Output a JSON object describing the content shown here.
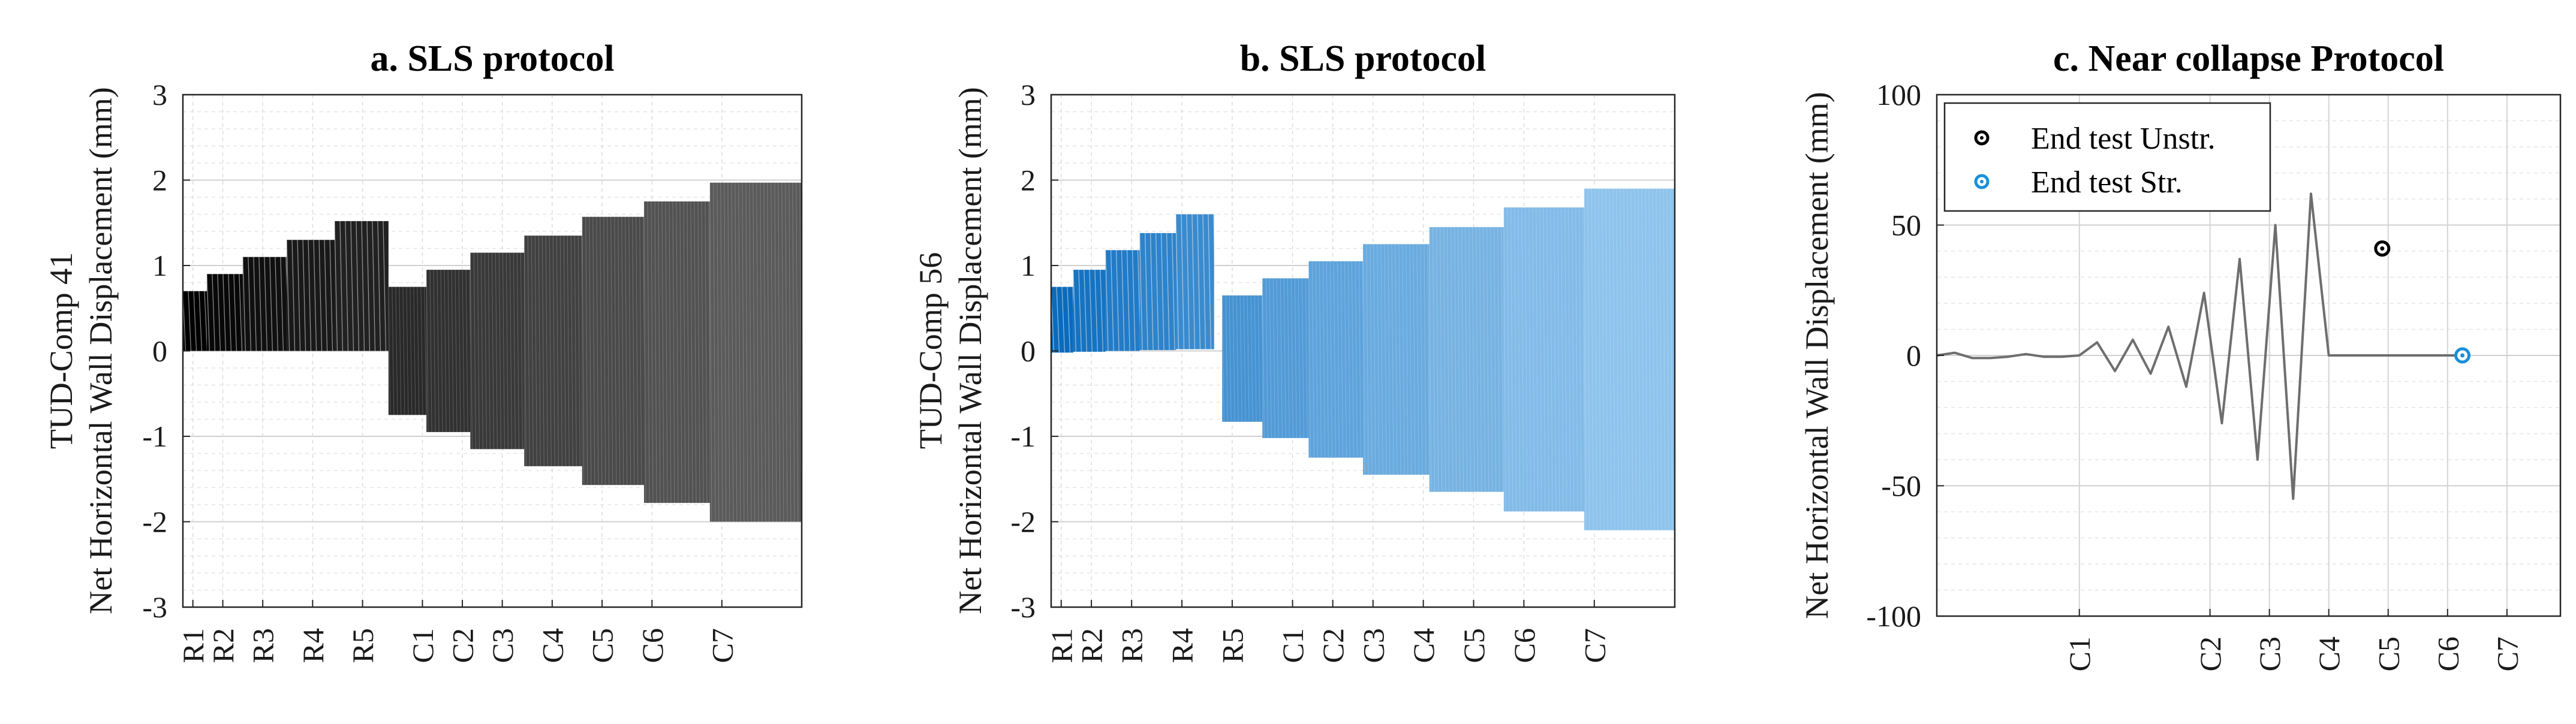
{
  "chart_data": [
    {
      "type": "area",
      "title": "a. SLS protocol",
      "ylabel_lines": [
        "TUD-Comp 41",
        "Net Horizontal Wall Displacement (mm)"
      ],
      "ylim": [
        -3,
        3
      ],
      "yticks": [
        3,
        2,
        1,
        0,
        -1,
        -2,
        -3
      ],
      "xticks": [
        "R1",
        "R2",
        "R3",
        "R4",
        "R5",
        "C1",
        "C2",
        "C3",
        "C4",
        "C5",
        "C6",
        "C7"
      ],
      "xtick_positions": [
        0.5,
        2,
        4,
        6.5,
        9,
        12,
        14,
        16,
        18.5,
        21,
        23.5,
        27
      ],
      "xlim": [
        0,
        31
      ],
      "grid": true,
      "color_start": "#000000",
      "color_end": "#5a5a5a",
      "segments": [
        {
          "label": "R1",
          "x0": 0,
          "x1": 1.2,
          "max": 0.7,
          "min": 0.0
        },
        {
          "label": "R2",
          "x0": 1.2,
          "x1": 3.0,
          "max": 0.9,
          "min": 0.0
        },
        {
          "label": "R3",
          "x0": 3.0,
          "x1": 5.2,
          "max": 1.1,
          "min": 0.0
        },
        {
          "label": "R4",
          "x0": 5.2,
          "x1": 7.6,
          "max": 1.3,
          "min": 0.0
        },
        {
          "label": "R5",
          "x0": 7.6,
          "x1": 10.3,
          "max": 1.52,
          "min": 0.0
        },
        {
          "label": "C1",
          "x0": 10.3,
          "x1": 12.2,
          "max": 0.75,
          "min": -0.75
        },
        {
          "label": "C2",
          "x0": 12.2,
          "x1": 14.4,
          "max": 0.95,
          "min": -0.95
        },
        {
          "label": "C3",
          "x0": 14.4,
          "x1": 17.1,
          "max": 1.15,
          "min": -1.15
        },
        {
          "label": "C4",
          "x0": 17.1,
          "x1": 20.0,
          "max": 1.35,
          "min": -1.35
        },
        {
          "label": "C5",
          "x0": 20.0,
          "x1": 23.1,
          "max": 1.57,
          "min": -1.57
        },
        {
          "label": "C6",
          "x0": 23.1,
          "x1": 26.4,
          "max": 1.75,
          "min": -1.78
        },
        {
          "label": "C7",
          "x0": 26.4,
          "x1": 31.0,
          "max": 1.97,
          "min": -2.0
        }
      ]
    },
    {
      "type": "area",
      "title": "b. SLS protocol",
      "ylabel_lines": [
        "TUD-Comp 56",
        "Net Horizontal Wall Displacement (mm)"
      ],
      "ylim": [
        -3,
        3
      ],
      "yticks": [
        3,
        2,
        1,
        0,
        -1,
        -2,
        -3
      ],
      "xticks": [
        "R1",
        "R2",
        "R3",
        "R4",
        "R5",
        "C1",
        "C2",
        "C3",
        "C4",
        "C5",
        "C6",
        "C7"
      ],
      "xtick_positions": [
        0.5,
        2,
        4,
        6.5,
        9,
        12,
        14,
        16,
        18.5,
        21,
        23.5,
        27
      ],
      "xlim": [
        0,
        31
      ],
      "grid": true,
      "color_start": "#0a6bbd",
      "color_end": "#8ec3ec",
      "segments": [
        {
          "label": "R1",
          "x0": 0,
          "x1": 1.1,
          "max": 0.75,
          "min": -0.02
        },
        {
          "label": "R2",
          "x0": 1.1,
          "x1": 2.7,
          "max": 0.95,
          "min": -0.01
        },
        {
          "label": "R3",
          "x0": 2.7,
          "x1": 4.4,
          "max": 1.18,
          "min": 0.0
        },
        {
          "label": "R4",
          "x0": 4.4,
          "x1": 6.2,
          "max": 1.38,
          "min": 0.01
        },
        {
          "label": "R5",
          "x0": 6.2,
          "x1": 8.1,
          "max": 1.6,
          "min": 0.02
        },
        {
          "label": "C1",
          "x0": 8.5,
          "x1": 10.5,
          "max": 0.65,
          "min": -0.83
        },
        {
          "label": "C2",
          "x0": 10.5,
          "x1": 12.8,
          "max": 0.85,
          "min": -1.02
        },
        {
          "label": "C3",
          "x0": 12.8,
          "x1": 15.5,
          "max": 1.05,
          "min": -1.25
        },
        {
          "label": "C4",
          "x0": 15.5,
          "x1": 18.8,
          "max": 1.25,
          "min": -1.45
        },
        {
          "label": "C5",
          "x0": 18.8,
          "x1": 22.5,
          "max": 1.45,
          "min": -1.65
        },
        {
          "label": "C6",
          "x0": 22.5,
          "x1": 26.5,
          "max": 1.68,
          "min": -1.88
        },
        {
          "label": "C7",
          "x0": 26.5,
          "x1": 31.0,
          "max": 1.9,
          "min": -2.1
        }
      ]
    },
    {
      "type": "line",
      "title": "c. Near collapse Protocol",
      "ylabel": "Net Horizontal Wall Displacement (mm)",
      "ylim": [
        -100,
        100
      ],
      "yticks": [
        100,
        50,
        0,
        -50,
        -100
      ],
      "xticks": [
        "C1",
        "C2",
        "C3",
        "C4",
        "C5",
        "C6",
        "C7"
      ],
      "xtick_positions": [
        2.4,
        4.6,
        5.6,
        6.6,
        7.6,
        8.6,
        9.6
      ],
      "xlim": [
        0,
        10.5
      ],
      "grid": true,
      "line_color": "#6e6e6e",
      "series": [
        {
          "name": "displacement",
          "x": [
            0,
            0.3,
            0.6,
            0.9,
            1.2,
            1.5,
            1.8,
            2.1,
            2.4,
            2.7,
            3.0,
            3.3,
            3.6,
            3.9,
            4.2,
            4.5,
            4.8,
            5.1,
            5.4,
            5.7,
            6.0,
            6.3,
            6.6,
            6.9,
            7.2,
            7.45,
            7.75,
            8.05,
            8.35,
            8.65,
            9.0
          ],
          "y": [
            0,
            1,
            -1,
            -1,
            -0.5,
            0.5,
            -0.5,
            -0.5,
            0,
            5,
            -6,
            6,
            -7,
            11,
            -12,
            24,
            -26,
            37,
            -40,
            50,
            -55,
            62,
            0,
            0,
            0,
            0,
            0,
            0,
            0,
            0,
            0
          ]
        }
      ],
      "markers": [
        {
          "name": "End test Unstr.",
          "x": 7.5,
          "y": 41,
          "color": "#000000"
        },
        {
          "name": "End test Str.",
          "x": 8.85,
          "y": 0,
          "color": "#1b8fd8"
        }
      ],
      "legend": [
        "End test Unstr.",
        "End test Str."
      ]
    }
  ]
}
